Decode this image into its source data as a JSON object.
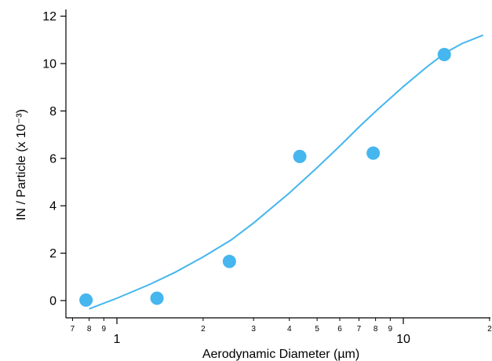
{
  "chart_data": {
    "type": "scatter",
    "xlabel": "Aerodynamic Diameter (µm)",
    "ylabel": "IN / Particle (x 10⁻³)",
    "x_scale": "log",
    "xlim": [
      0.7,
      20
    ],
    "ylim": [
      -0.6,
      12.3
    ],
    "y_ticks": [
      0,
      2,
      4,
      6,
      8,
      10,
      12
    ],
    "x_major_ticks": [
      {
        "value": 1,
        "label": "1"
      },
      {
        "value": 10,
        "label": "10"
      }
    ],
    "x_minor_ticks": [
      {
        "value": 0.7,
        "label": "7"
      },
      {
        "value": 0.8,
        "label": "8"
      },
      {
        "value": 0.9,
        "label": "9"
      },
      {
        "value": 2,
        "label": "2"
      },
      {
        "value": 3,
        "label": "3"
      },
      {
        "value": 4,
        "label": "4"
      },
      {
        "value": 5,
        "label": "5"
      },
      {
        "value": 6,
        "label": "6"
      },
      {
        "value": 7,
        "label": "7"
      },
      {
        "value": 8,
        "label": "8"
      },
      {
        "value": 9,
        "label": "9"
      },
      {
        "value": 20,
        "label": "2"
      }
    ],
    "grid": false,
    "color": "#45b6ee",
    "series": [
      {
        "type": "scatter",
        "x": [
          0.78,
          1.38,
          2.47,
          4.35,
          7.85,
          13.9
        ],
        "y": [
          0.02,
          0.1,
          1.65,
          6.08,
          6.22,
          10.38
        ]
      },
      {
        "type": "line",
        "x": [
          0.8,
          1.0,
          1.3,
          1.6,
          2.0,
          2.5,
          3.0,
          4.0,
          5.0,
          6.0,
          7.0,
          8.0,
          10.0,
          12.0,
          14.0,
          16.0,
          19.0
        ],
        "y": [
          -0.35,
          0.1,
          0.68,
          1.2,
          1.84,
          2.55,
          3.27,
          4.54,
          5.61,
          6.52,
          7.32,
          7.98,
          9.03,
          9.83,
          10.45,
          10.84,
          11.2
        ]
      }
    ]
  }
}
